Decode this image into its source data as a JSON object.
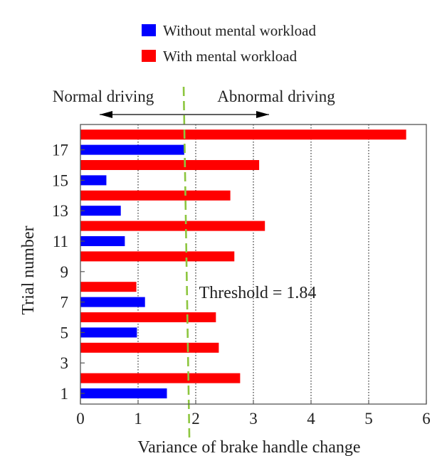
{
  "chart_data": {
    "type": "bar",
    "orientation": "horizontal",
    "xlabel": "Variance of brake handle change",
    "ylabel": "Trial number",
    "xlim": [
      0,
      6
    ],
    "x_ticks": [
      0,
      1,
      2,
      3,
      4,
      5,
      6
    ],
    "ylim": [
      0.5,
      19
    ],
    "y_ticks": [
      1,
      3,
      5,
      7,
      9,
      11,
      13,
      15,
      17
    ],
    "grid": "vertical dotted",
    "legend_position": "top",
    "series": [
      {
        "name": "Without mental workload",
        "color": "#0000ff",
        "points": [
          {
            "trial": 1,
            "value": 1.5
          },
          {
            "trial": 5,
            "value": 0.98
          },
          {
            "trial": 7,
            "value": 1.12
          },
          {
            "trial": 11,
            "value": 0.77
          },
          {
            "trial": 13,
            "value": 0.7
          },
          {
            "trial": 15,
            "value": 0.45
          },
          {
            "trial": 17,
            "value": 1.8
          }
        ]
      },
      {
        "name": "With mental workload",
        "color": "#ff0000",
        "points": [
          {
            "trial": 2,
            "value": 2.77
          },
          {
            "trial": 4,
            "value": 2.4
          },
          {
            "trial": 6,
            "value": 2.35
          },
          {
            "trial": 8,
            "value": 0.97
          },
          {
            "trial": 10,
            "value": 2.67
          },
          {
            "trial": 12,
            "value": 3.2
          },
          {
            "trial": 14,
            "value": 2.6
          },
          {
            "trial": 16,
            "value": 3.1
          },
          {
            "trial": 18,
            "value": 5.65
          }
        ]
      }
    ],
    "threshold": {
      "value": 1.84,
      "label": "Threshold = 1.84",
      "color": "#8dc63f"
    },
    "annotations": {
      "left": "Normal driving",
      "right": "Abnormal driving"
    }
  }
}
